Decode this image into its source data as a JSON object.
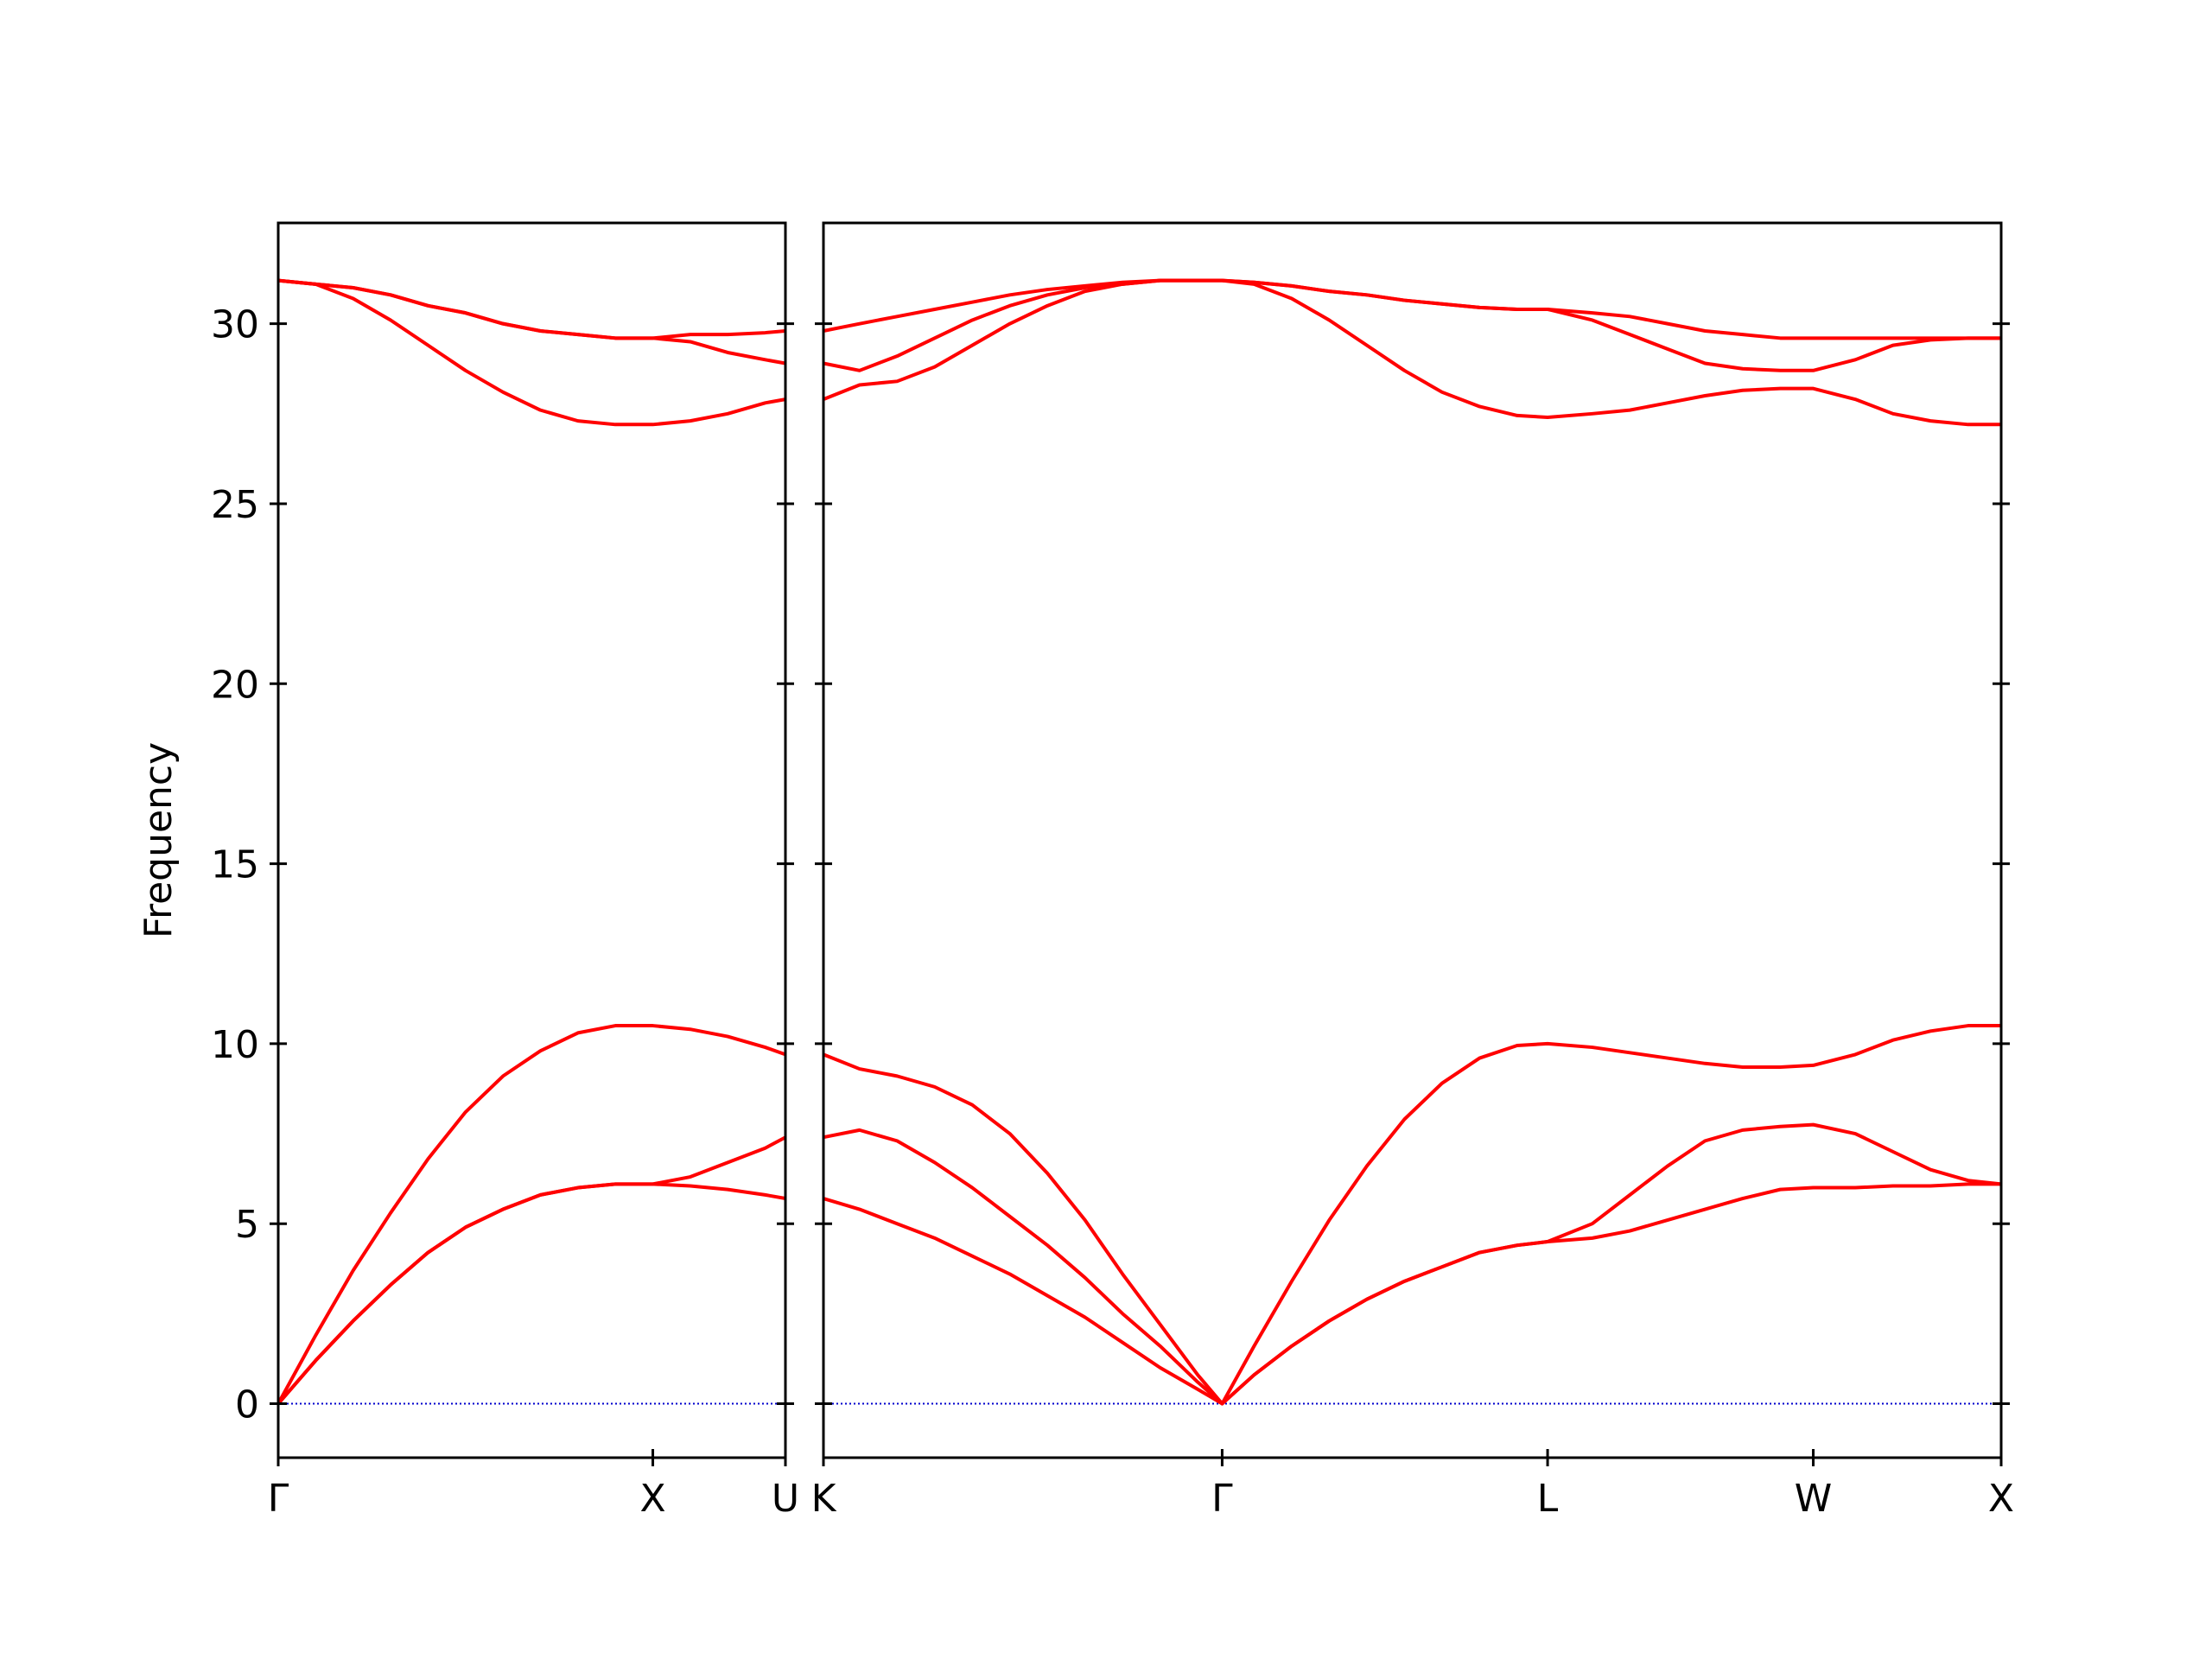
{
  "chart_data": [
    {
      "type": "line",
      "ylabel": "Frequency",
      "x": [
        0,
        0.1,
        0.2,
        0.3,
        0.4,
        0.5,
        0.6,
        0.7,
        0.8,
        0.9,
        1.0,
        1.1,
        1.2,
        1.3,
        1.354
      ],
      "xlim": [
        0,
        1.354
      ],
      "xticks": [
        {
          "value": 0,
          "label": "Γ"
        },
        {
          "value": 1.0,
          "label": "X"
        },
        {
          "value": 1.354,
          "label": "U"
        }
      ],
      "ylim": [
        -1.5,
        32.8
      ],
      "yticks": [
        0,
        5,
        10,
        15,
        20,
        25,
        30
      ],
      "hline": 0,
      "hline_color": "#0000cc",
      "series": [
        {
          "color": "#ff0000",
          "values": [
            0,
            1.2,
            2.3,
            3.3,
            4.2,
            4.9,
            5.4,
            5.8,
            6.0,
            6.1,
            6.1,
            6.05,
            5.95,
            5.8,
            5.7
          ]
        },
        {
          "color": "#ff0000",
          "values": [
            0,
            1.2,
            2.3,
            3.3,
            4.2,
            4.9,
            5.4,
            5.8,
            6.0,
            6.1,
            6.1,
            6.3,
            6.7,
            7.1,
            7.4
          ]
        },
        {
          "color": "#ff0000",
          "values": [
            0,
            1.9,
            3.7,
            5.3,
            6.8,
            8.1,
            9.1,
            9.8,
            10.3,
            10.5,
            10.5,
            10.4,
            10.2,
            9.9,
            9.7
          ]
        },
        {
          "color": "#ff0000",
          "values": [
            31.2,
            31.1,
            30.7,
            30.1,
            29.4,
            28.7,
            28.1,
            27.6,
            27.3,
            27.2,
            27.2,
            27.3,
            27.5,
            27.8,
            27.9
          ]
        },
        {
          "color": "#ff0000",
          "values": [
            31.2,
            31.1,
            31.0,
            30.8,
            30.5,
            30.3,
            30.0,
            29.8,
            29.7,
            29.6,
            29.6,
            29.5,
            29.2,
            29.0,
            28.9
          ]
        },
        {
          "color": "#ff0000",
          "values": [
            31.2,
            31.1,
            31.0,
            30.8,
            30.5,
            30.3,
            30.0,
            29.8,
            29.7,
            29.6,
            29.6,
            29.7,
            29.7,
            29.75,
            29.8
          ]
        }
      ]
    },
    {
      "type": "line",
      "x": [
        1.354,
        1.45,
        1.55,
        1.65,
        1.75,
        1.85,
        1.95,
        2.05,
        2.15,
        2.25,
        2.35,
        2.415,
        2.5,
        2.6,
        2.7,
        2.8,
        2.9,
        3.0,
        3.1,
        3.2,
        3.281,
        3.4,
        3.5,
        3.6,
        3.7,
        3.8,
        3.9,
        3.988,
        4.1,
        4.2,
        4.3,
        4.4,
        4.488
      ],
      "xlim": [
        1.354,
        4.488
      ],
      "xticks": [
        {
          "value": 1.354,
          "label": "K"
        },
        {
          "value": 2.415,
          "label": "Γ"
        },
        {
          "value": 3.281,
          "label": "L"
        },
        {
          "value": 3.988,
          "label": "W"
        },
        {
          "value": 4.488,
          "label": "X"
        }
      ],
      "ylim": [
        -1.5,
        32.8
      ],
      "yticks": [
        0,
        5,
        10,
        15,
        20,
        25,
        30
      ],
      "ytick_labels": false,
      "hline": 0,
      "hline_color": "#0000cc",
      "series": [
        {
          "color": "#ff0000",
          "values": [
            5.7,
            5.4,
            5.0,
            4.6,
            4.1,
            3.6,
            3.0,
            2.4,
            1.7,
            1.0,
            0.4,
            0,
            0.8,
            1.6,
            2.3,
            2.9,
            3.4,
            3.8,
            4.2,
            4.4,
            4.5,
            4.6,
            4.8,
            5.1,
            5.4,
            5.7,
            5.95,
            6.0,
            6.0,
            6.05,
            6.05,
            6.1,
            6.1
          ]
        },
        {
          "color": "#ff0000",
          "values": [
            7.4,
            7.6,
            7.3,
            6.7,
            6.0,
            5.2,
            4.4,
            3.5,
            2.5,
            1.6,
            0.6,
            0,
            0.8,
            1.6,
            2.3,
            2.9,
            3.4,
            3.8,
            4.2,
            4.4,
            4.5,
            5.0,
            5.8,
            6.6,
            7.3,
            7.6,
            7.7,
            7.75,
            7.5,
            7.0,
            6.5,
            6.2,
            6.1
          ]
        },
        {
          "color": "#ff0000",
          "values": [
            9.7,
            9.3,
            9.1,
            8.8,
            8.3,
            7.5,
            6.4,
            5.1,
            3.6,
            2.2,
            0.8,
            0,
            1.6,
            3.4,
            5.1,
            6.6,
            7.9,
            8.9,
            9.6,
            9.95,
            10.0,
            9.9,
            9.75,
            9.6,
            9.45,
            9.35,
            9.35,
            9.4,
            9.7,
            10.1,
            10.35,
            10.5,
            10.5
          ]
        },
        {
          "color": "#ff0000",
          "values": [
            27.9,
            28.3,
            28.4,
            28.8,
            29.4,
            30.0,
            30.5,
            30.9,
            31.1,
            31.2,
            31.2,
            31.2,
            31.1,
            30.7,
            30.1,
            29.4,
            28.7,
            28.1,
            27.7,
            27.45,
            27.4,
            27.5,
            27.6,
            27.8,
            28.0,
            28.15,
            28.2,
            28.2,
            27.9,
            27.5,
            27.3,
            27.2,
            27.2
          ]
        },
        {
          "color": "#ff0000",
          "values": [
            28.9,
            28.7,
            29.1,
            29.6,
            30.1,
            30.5,
            30.8,
            31.0,
            31.1,
            31.2,
            31.2,
            31.2,
            31.15,
            31.05,
            30.9,
            30.8,
            30.65,
            30.55,
            30.45,
            30.4,
            30.4,
            30.1,
            29.7,
            29.3,
            28.9,
            28.75,
            28.7,
            28.7,
            29.0,
            29.4,
            29.55,
            29.6,
            29.6
          ]
        },
        {
          "color": "#ff0000",
          "values": [
            29.8,
            30.0,
            30.2,
            30.4,
            30.6,
            30.8,
            30.95,
            31.05,
            31.15,
            31.2,
            31.2,
            31.2,
            31.15,
            31.05,
            30.9,
            30.8,
            30.65,
            30.55,
            30.45,
            30.4,
            30.4,
            30.3,
            30.2,
            30.0,
            29.8,
            29.7,
            29.6,
            29.6,
            29.6,
            29.6,
            29.6,
            29.6,
            29.6
          ]
        }
      ]
    }
  ]
}
